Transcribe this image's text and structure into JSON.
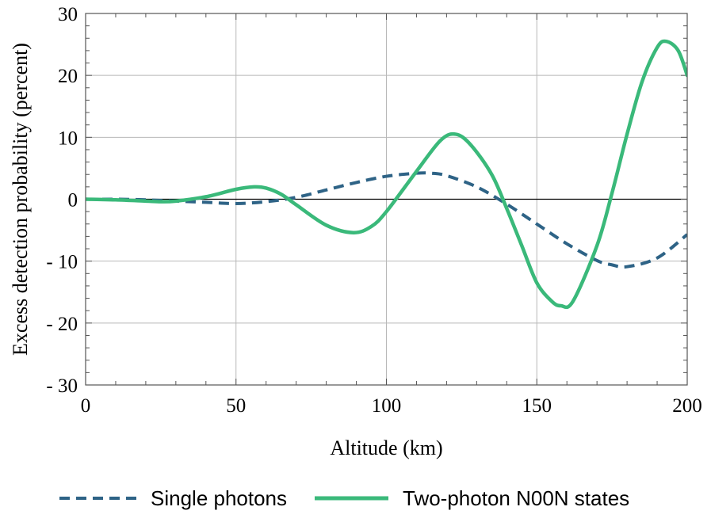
{
  "chart_data": {
    "type": "line",
    "title": "",
    "xlabel": "Altitude (km)",
    "ylabel": "Excess detection probability (percent)",
    "xlim": [
      0,
      200
    ],
    "ylim": [
      -30,
      30
    ],
    "xticks": [
      0,
      50,
      100,
      150,
      200
    ],
    "yticks": [
      -30,
      -20,
      -10,
      0,
      10,
      20,
      30
    ],
    "xtick_labels": [
      "0",
      "50",
      "100",
      "150",
      "200"
    ],
    "ytick_labels": [
      "- 30",
      "- 20",
      "- 10",
      "0",
      "10",
      "20",
      "30"
    ],
    "grid": true,
    "legend_position": "bottom",
    "series": [
      {
        "name": "Single photons",
        "color": "#2e6386",
        "style": "dashed",
        "x": [
          0,
          10,
          20,
          30,
          40,
          50,
          60,
          70,
          80,
          90,
          100,
          110,
          115,
          120,
          130,
          140,
          150,
          160,
          170,
          175,
          180,
          190,
          200
        ],
        "y": [
          0,
          0,
          -0.1,
          -0.3,
          -0.5,
          -0.7,
          -0.4,
          0.3,
          1.5,
          2.7,
          3.7,
          4.2,
          4.2,
          3.8,
          2.0,
          -0.8,
          -4.0,
          -7.2,
          -9.9,
          -10.6,
          -10.9,
          -9.5,
          -5.7
        ]
      },
      {
        "name": "Two-photon N00N states",
        "color": "#3ab97a",
        "style": "solid",
        "x": [
          0,
          10,
          20,
          25,
          30,
          40,
          50,
          56,
          60,
          65,
          70,
          80,
          89,
          95,
          100,
          110,
          118,
          123,
          128,
          135,
          140,
          145,
          150,
          155,
          158,
          162,
          170,
          175,
          180,
          185,
          190,
          193,
          197,
          200
        ],
        "y": [
          0,
          -0.1,
          -0.3,
          -0.4,
          -0.3,
          0.4,
          1.6,
          2.0,
          1.8,
          0.8,
          -0.9,
          -4.2,
          -5.4,
          -4.4,
          -2.0,
          4.5,
          9.5,
          10.5,
          8.8,
          4.0,
          -1.5,
          -7.5,
          -13.5,
          -16.5,
          -17.2,
          -16.5,
          -7.5,
          1.0,
          10.5,
          19.0,
          24.5,
          25.5,
          24.0,
          20.0
        ]
      }
    ]
  }
}
